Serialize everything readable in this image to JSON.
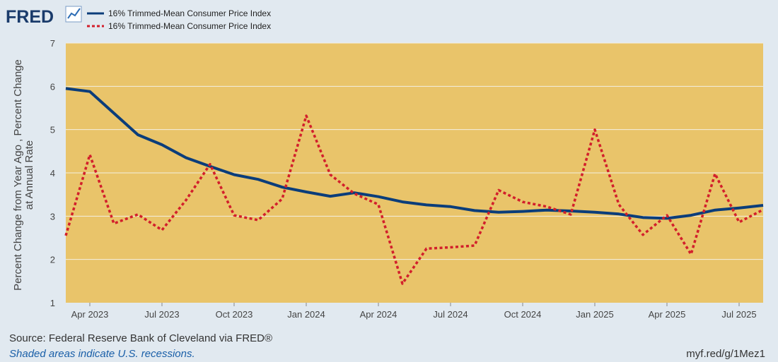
{
  "header": {
    "logo_text": "FRED"
  },
  "footer": {
    "source": "Source: Federal Reserve Bank of Cleveland via FRED®",
    "shaded_note": "Shaded areas indicate U.S. recessions.",
    "short_url": "myf.red/g/1Mez1"
  },
  "colors": {
    "background": "#e1e9f0",
    "plot_fill": "#e9c46a",
    "series_solid": "#0b3d7a",
    "series_dotted": "#d21f2b",
    "grid": "#f3efe3",
    "text": "#444444",
    "link_text": "#1a5fa8"
  },
  "chart_data": {
    "type": "line",
    "title": "",
    "xlabel": "",
    "ylabel": "Percent Change from Year Ago , Percent Change at Annual Rate",
    "ylabel_lines": [
      "Percent Change from Year Ago , Percent Change",
      "at Annual Rate"
    ],
    "ylim": [
      1,
      7
    ],
    "yticks": [
      1,
      2,
      3,
      4,
      5,
      6,
      7
    ],
    "grid": true,
    "legend_position": "top-left",
    "x_ticks": [
      {
        "label": "Apr 2023",
        "month": 3
      },
      {
        "label": "Jul 2023",
        "month": 6
      },
      {
        "label": "Oct 2023",
        "month": 9
      },
      {
        "label": "Jan 2024",
        "month": 12
      },
      {
        "label": "Apr 2024",
        "month": 15
      },
      {
        "label": "Jul 2024",
        "month": 18
      },
      {
        "label": "Oct 2024",
        "month": 21
      },
      {
        "label": "Jan 2025",
        "month": 24
      },
      {
        "label": "Apr 2025",
        "month": 27
      },
      {
        "label": "Jul 2025",
        "month": 30
      }
    ],
    "x_month_range": [
      2,
      31
    ],
    "series": [
      {
        "name": "16% Trimmed-Mean Consumer Price Index",
        "style": "solid",
        "x": [
          2,
          3,
          4,
          5,
          6,
          7,
          8,
          9,
          10,
          11,
          12,
          13,
          14,
          15,
          16,
          17,
          18,
          19,
          20,
          21,
          22,
          23,
          24,
          25,
          26,
          27,
          28,
          29,
          30,
          31
        ],
        "values": [
          5.95,
          5.88,
          5.38,
          4.88,
          4.65,
          4.35,
          4.15,
          3.96,
          3.85,
          3.67,
          3.56,
          3.46,
          3.54,
          3.45,
          3.33,
          3.26,
          3.22,
          3.13,
          3.09,
          3.11,
          3.14,
          3.12,
          3.09,
          3.05,
          2.97,
          2.95,
          3.02,
          3.14,
          3.19,
          3.25
        ]
      },
      {
        "name": "16% Trimmed-Mean Consumer Price Index",
        "style": "dotted",
        "x": [
          2,
          3,
          4,
          5,
          6,
          7,
          8,
          9,
          10,
          11,
          12,
          13,
          14,
          15,
          16,
          17,
          18,
          19,
          20,
          21,
          22,
          23,
          24,
          25,
          26,
          27,
          28,
          29,
          30,
          31
        ],
        "values": [
          2.55,
          4.42,
          2.83,
          3.04,
          2.68,
          3.37,
          4.2,
          3.02,
          2.91,
          3.4,
          5.32,
          3.96,
          3.52,
          3.27,
          1.44,
          2.25,
          2.28,
          2.32,
          3.6,
          3.33,
          3.22,
          3.04,
          5.0,
          3.27,
          2.57,
          3.02,
          2.12,
          3.98,
          2.86,
          3.15
        ]
      }
    ]
  }
}
